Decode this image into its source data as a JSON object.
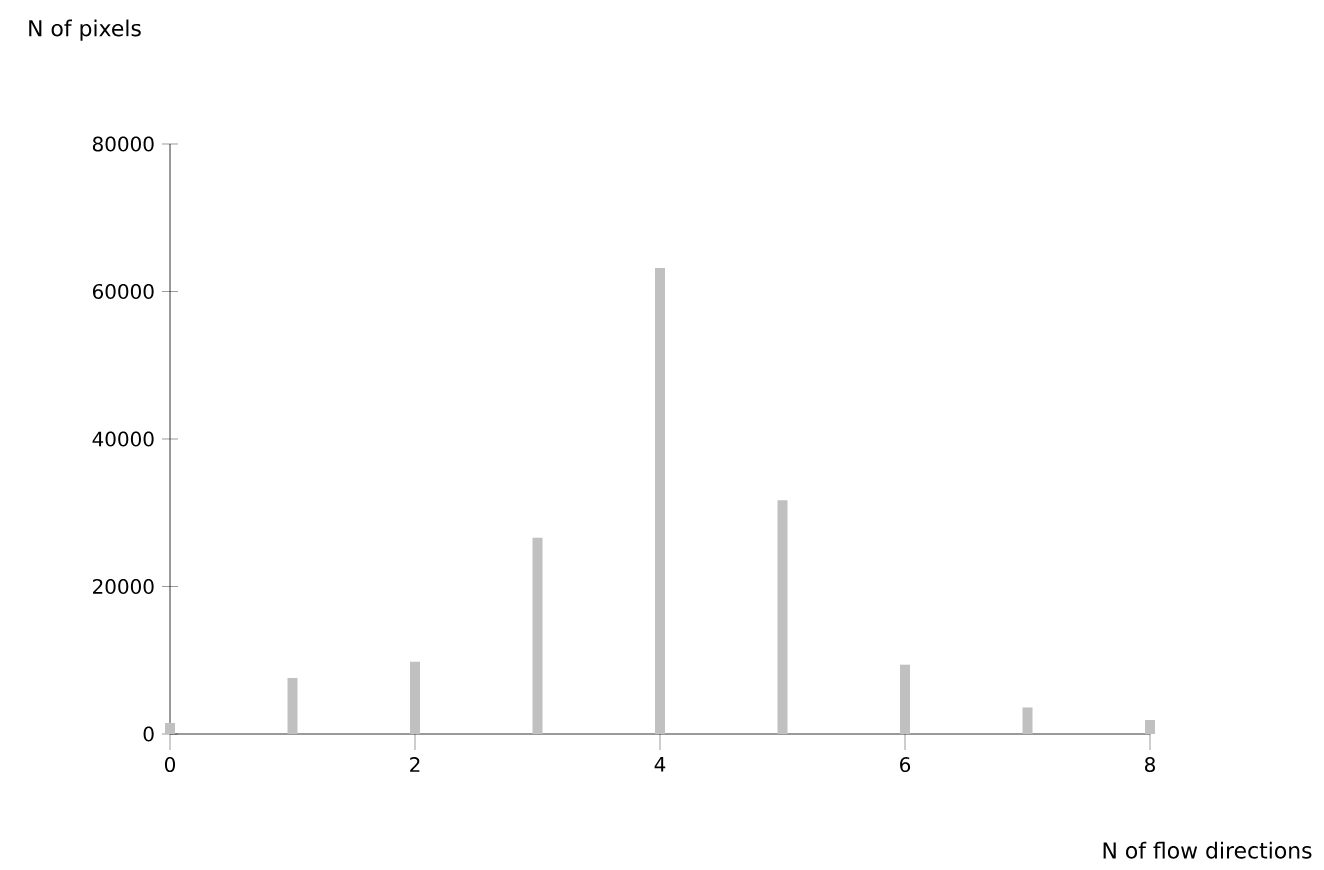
{
  "chart_data": {
    "type": "bar",
    "xlabel": "N of flow directions",
    "ylabel": "N of pixels",
    "x": [
      0,
      1,
      2,
      3,
      4,
      5,
      6,
      7,
      8
    ],
    "values": [
      1500,
      7600,
      9800,
      26600,
      63200,
      31700,
      9400,
      3600,
      1900
    ],
    "color": "#c0c0c0",
    "xlim": [
      0,
      8
    ],
    "xticks": [
      0,
      2,
      4,
      6,
      8
    ],
    "ylim": [
      0,
      80000
    ],
    "yticks": [
      0,
      20000,
      40000,
      60000,
      80000
    ]
  }
}
